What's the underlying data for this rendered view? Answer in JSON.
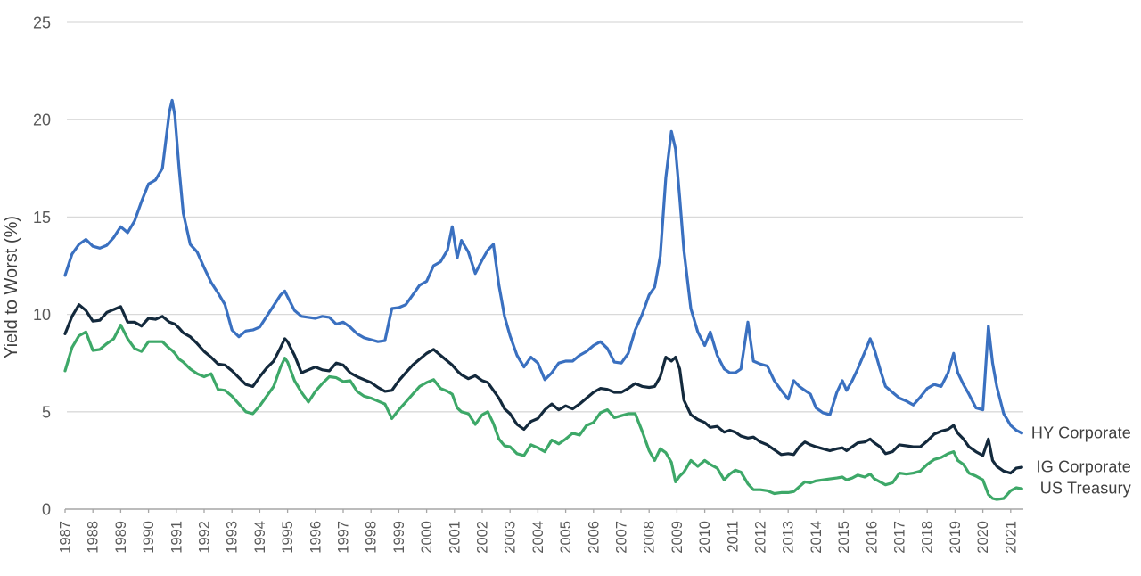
{
  "chart_data": {
    "type": "line",
    "title": "",
    "xlabel": "",
    "ylabel": "Yield to Worst (%)",
    "ylim": [
      0,
      25
    ],
    "xlim": [
      1987,
      2021.45
    ],
    "grid": "horizontal",
    "legend_position": "right-end-of-line-labels",
    "y_ticks": [
      0,
      5,
      10,
      15,
      20,
      25
    ],
    "x_ticks": [
      1987,
      1988,
      1989,
      1990,
      1991,
      1992,
      1993,
      1994,
      1995,
      1996,
      1997,
      1998,
      1999,
      2000,
      2001,
      2002,
      2003,
      2004,
      2005,
      2006,
      2007,
      2008,
      2009,
      2010,
      2011,
      2012,
      2013,
      2014,
      2015,
      2016,
      2017,
      2018,
      2019,
      2020,
      2021
    ],
    "x": [
      1987,
      1987.25,
      1987.5,
      1987.75,
      1988,
      1988.25,
      1988.5,
      1988.75,
      1989,
      1989.25,
      1989.5,
      1989.75,
      1990,
      1990.25,
      1990.5,
      1990.75,
      1990.85,
      1990.95,
      1991.1,
      1991.25,
      1991.5,
      1991.75,
      1992,
      1992.25,
      1992.5,
      1992.75,
      1993,
      1993.25,
      1993.5,
      1993.75,
      1994,
      1994.25,
      1994.5,
      1994.75,
      1994.9,
      1995,
      1995.25,
      1995.5,
      1995.75,
      1996,
      1996.25,
      1996.5,
      1996.75,
      1997,
      1997.25,
      1997.5,
      1997.75,
      1998,
      1998.25,
      1998.5,
      1998.75,
      1999,
      1999.25,
      1999.5,
      1999.75,
      2000,
      2000.25,
      2000.5,
      2000.75,
      2000.92,
      2001.1,
      2001.25,
      2001.5,
      2001.75,
      2002,
      2002.2,
      2002.4,
      2002.6,
      2002.8,
      2003,
      2003.25,
      2003.5,
      2003.75,
      2004,
      2004.25,
      2004.5,
      2004.75,
      2005,
      2005.25,
      2005.5,
      2005.75,
      2006,
      2006.25,
      2006.5,
      2006.75,
      2007,
      2007.25,
      2007.5,
      2007.75,
      2008,
      2008.2,
      2008.4,
      2008.6,
      2008.8,
      2008.95,
      2009.1,
      2009.25,
      2009.5,
      2009.75,
      2010,
      2010.2,
      2010.45,
      2010.7,
      2010.9,
      2011.1,
      2011.3,
      2011.55,
      2011.75,
      2012,
      2012.25,
      2012.5,
      2012.75,
      2013,
      2013.2,
      2013.4,
      2013.6,
      2013.8,
      2014,
      2014.25,
      2014.5,
      2014.75,
      2014.95,
      2015.1,
      2015.3,
      2015.5,
      2015.75,
      2015.95,
      2016.1,
      2016.3,
      2016.5,
      2016.75,
      2017,
      2017.25,
      2017.5,
      2017.75,
      2018,
      2018.25,
      2018.5,
      2018.75,
      2018.95,
      2019.1,
      2019.3,
      2019.5,
      2019.75,
      2020,
      2020.2,
      2020.35,
      2020.5,
      2020.75,
      2021,
      2021.2,
      2021.4
    ],
    "series": [
      {
        "name": "HY Corporate",
        "color": "#3A70C0",
        "values": [
          12.0,
          13.1,
          13.6,
          13.85,
          13.5,
          13.4,
          13.55,
          13.95,
          14.5,
          14.2,
          14.8,
          15.8,
          16.7,
          16.9,
          17.5,
          20.4,
          21.0,
          20.2,
          17.5,
          15.2,
          13.6,
          13.2,
          12.4,
          11.65,
          11.1,
          10.5,
          9.2,
          8.85,
          9.15,
          9.2,
          9.35,
          9.9,
          10.45,
          11.0,
          11.2,
          10.9,
          10.2,
          9.9,
          9.85,
          9.8,
          9.9,
          9.85,
          9.5,
          9.6,
          9.35,
          9.0,
          8.8,
          8.7,
          8.6,
          8.65,
          10.3,
          10.35,
          10.5,
          11.0,
          11.5,
          11.7,
          12.5,
          12.7,
          13.3,
          14.5,
          12.9,
          13.8,
          13.2,
          12.1,
          12.8,
          13.3,
          13.6,
          11.5,
          9.9,
          8.9,
          7.9,
          7.3,
          7.8,
          7.5,
          6.65,
          7.0,
          7.5,
          7.6,
          7.6,
          7.9,
          8.1,
          8.4,
          8.6,
          8.25,
          7.55,
          7.5,
          8.0,
          9.2,
          10.0,
          11.0,
          11.4,
          13.0,
          17.0,
          19.4,
          18.5,
          16.0,
          13.3,
          10.3,
          9.1,
          8.4,
          9.1,
          7.9,
          7.2,
          7.0,
          7.0,
          7.2,
          9.6,
          7.6,
          7.45,
          7.35,
          6.6,
          6.1,
          5.65,
          6.6,
          6.3,
          6.1,
          5.9,
          5.2,
          4.95,
          4.85,
          6.0,
          6.6,
          6.1,
          6.6,
          7.2,
          8.05,
          8.75,
          8.2,
          7.2,
          6.3,
          6.0,
          5.7,
          5.55,
          5.35,
          5.75,
          6.2,
          6.4,
          6.3,
          7.0,
          8.0,
          7.0,
          6.4,
          5.9,
          5.2,
          5.1,
          9.4,
          7.5,
          6.3,
          4.9,
          4.3,
          4.05,
          3.9
        ]
      },
      {
        "name": "IG Corporate",
        "color": "#13293C",
        "values": [
          9.0,
          9.9,
          10.5,
          10.2,
          9.65,
          9.7,
          10.1,
          10.25,
          10.4,
          9.6,
          9.6,
          9.4,
          9.8,
          9.75,
          9.9,
          9.6,
          9.55,
          9.5,
          9.3,
          9.05,
          8.85,
          8.5,
          8.1,
          7.8,
          7.45,
          7.4,
          7.1,
          6.75,
          6.4,
          6.3,
          6.8,
          7.25,
          7.6,
          8.3,
          8.75,
          8.6,
          7.9,
          7.0,
          7.15,
          7.3,
          7.15,
          7.1,
          7.5,
          7.4,
          7.0,
          6.8,
          6.65,
          6.5,
          6.25,
          6.05,
          6.1,
          6.6,
          7.0,
          7.4,
          7.7,
          8.0,
          8.2,
          7.9,
          7.6,
          7.4,
          7.1,
          6.9,
          6.7,
          6.85,
          6.6,
          6.5,
          6.1,
          5.7,
          5.15,
          4.9,
          4.35,
          4.1,
          4.5,
          4.65,
          5.1,
          5.4,
          5.1,
          5.3,
          5.15,
          5.4,
          5.7,
          6.0,
          6.2,
          6.15,
          6.0,
          6.0,
          6.2,
          6.45,
          6.3,
          6.25,
          6.3,
          6.8,
          7.8,
          7.6,
          7.8,
          7.2,
          5.6,
          4.85,
          4.6,
          4.45,
          4.2,
          4.25,
          3.95,
          4.05,
          3.95,
          3.75,
          3.65,
          3.7,
          3.45,
          3.3,
          3.05,
          2.8,
          2.85,
          2.8,
          3.2,
          3.45,
          3.3,
          3.2,
          3.1,
          3.0,
          3.1,
          3.15,
          3.0,
          3.2,
          3.4,
          3.45,
          3.6,
          3.4,
          3.2,
          2.85,
          2.95,
          3.3,
          3.25,
          3.2,
          3.2,
          3.5,
          3.85,
          4.0,
          4.1,
          4.3,
          3.9,
          3.6,
          3.2,
          2.95,
          2.75,
          3.6,
          2.5,
          2.2,
          1.95,
          1.85,
          2.1,
          2.15
        ]
      },
      {
        "name": "US Treasury",
        "color": "#3DA868",
        "values": [
          7.1,
          8.3,
          8.9,
          9.1,
          8.15,
          8.2,
          8.5,
          8.75,
          9.45,
          8.75,
          8.25,
          8.1,
          8.6,
          8.6,
          8.6,
          8.25,
          8.15,
          8.0,
          7.7,
          7.55,
          7.2,
          6.95,
          6.8,
          6.95,
          6.15,
          6.1,
          5.8,
          5.4,
          5.0,
          4.9,
          5.3,
          5.8,
          6.3,
          7.3,
          7.75,
          7.55,
          6.6,
          6.0,
          5.5,
          6.05,
          6.45,
          6.8,
          6.75,
          6.55,
          6.6,
          6.05,
          5.8,
          5.7,
          5.55,
          5.4,
          4.65,
          5.1,
          5.5,
          5.9,
          6.3,
          6.5,
          6.65,
          6.2,
          6.05,
          5.9,
          5.2,
          5.0,
          4.9,
          4.35,
          4.85,
          5.0,
          4.4,
          3.6,
          3.25,
          3.2,
          2.85,
          2.75,
          3.3,
          3.15,
          2.95,
          3.55,
          3.35,
          3.6,
          3.9,
          3.8,
          4.3,
          4.45,
          4.95,
          5.1,
          4.7,
          4.8,
          4.9,
          4.9,
          4.0,
          3.0,
          2.5,
          3.1,
          2.9,
          2.4,
          1.4,
          1.7,
          1.9,
          2.5,
          2.2,
          2.5,
          2.3,
          2.1,
          1.5,
          1.8,
          2.0,
          1.9,
          1.3,
          1.0,
          1.0,
          0.95,
          0.8,
          0.85,
          0.85,
          0.9,
          1.15,
          1.4,
          1.35,
          1.45,
          1.5,
          1.55,
          1.6,
          1.65,
          1.5,
          1.6,
          1.75,
          1.65,
          1.8,
          1.55,
          1.4,
          1.25,
          1.35,
          1.85,
          1.8,
          1.85,
          1.95,
          2.3,
          2.55,
          2.65,
          2.85,
          2.95,
          2.5,
          2.3,
          1.85,
          1.7,
          1.5,
          0.75,
          0.55,
          0.5,
          0.55,
          0.95,
          1.1,
          1.05
        ]
      }
    ],
    "colors": {
      "grid": "#D9D9D9",
      "axis": "#A6A6A6",
      "tick_label": "#595959",
      "axis_title": "#404040",
      "series_label": "#404040",
      "background": "#FFFFFF"
    }
  }
}
